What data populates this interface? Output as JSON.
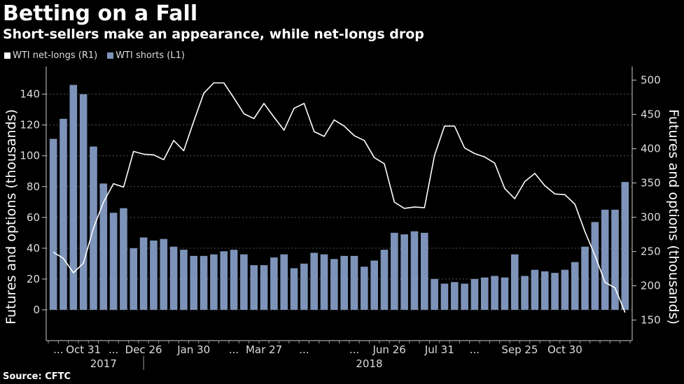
{
  "title": "Betting on a Fall",
  "subtitle": "Short-sellers make an appearance, while net-longs drop",
  "source": "Source: CFTC",
  "legend": {
    "net_longs": "WTI net-longs (R1)",
    "shorts": "WTI shorts (L1)"
  },
  "colors": {
    "bar": "#7d93b9",
    "line": "#ffffff",
    "grid": "#555555"
  },
  "chart_data": {
    "type": "bar+line",
    "y_left": {
      "label": "Futures and options (thousands)",
      "ticks": [
        0,
        20,
        40,
        60,
        80,
        100,
        120,
        140
      ],
      "range": [
        -20,
        158
      ]
    },
    "y_right": {
      "label": "Futures and options (thousands)",
      "ticks": [
        150,
        200,
        250,
        300,
        350,
        400,
        450,
        500
      ],
      "range": [
        120,
        520
      ]
    },
    "x_tick_labels": [
      "...",
      "Oct 31",
      "...",
      "Dec 26",
      "Jan 30",
      "...",
      "Mar 27",
      "...",
      "...",
      "Jun 26",
      "Jul 31",
      "...",
      "Sep 25",
      "Oct 30"
    ],
    "x_tick_positions": [
      1,
      3.5,
      6.5,
      9.5,
      14.5,
      18.5,
      21.5,
      25.5,
      30.5,
      34,
      39,
      42.5,
      47,
      51.5
    ],
    "year_labels": [
      "2017",
      "2018"
    ],
    "year_label_positions": [
      5.5,
      32
    ],
    "year_divider_after": 9.5,
    "series": [
      {
        "name": "WTI shorts (L1)",
        "kind": "bar",
        "axis": "left",
        "values": [
          111,
          124,
          146,
          140,
          106,
          82,
          63,
          66,
          40,
          47,
          45,
          46,
          41,
          39,
          35,
          35,
          36,
          38,
          39,
          36,
          29,
          29,
          34,
          36,
          27,
          30,
          37,
          36,
          33,
          35,
          35,
          28,
          32,
          39,
          50,
          49,
          51,
          50,
          20,
          17,
          18,
          17,
          20,
          21,
          22,
          21,
          36,
          22,
          26,
          25,
          24,
          26,
          31,
          41,
          57,
          65,
          65,
          83
        ]
      },
      {
        "name": "WTI net-longs (R1)",
        "kind": "line",
        "axis": "right",
        "values": [
          249,
          240,
          219,
          233,
          284,
          322,
          349,
          344,
          396,
          392,
          391,
          384,
          412,
          397,
          440,
          481,
          496,
          496,
          474,
          451,
          444,
          466,
          446,
          427,
          459,
          466,
          425,
          418,
          442,
          433,
          419,
          412,
          387,
          378,
          322,
          313,
          315,
          314,
          390,
          433,
          433,
          401,
          393,
          388,
          379,
          342,
          327,
          352,
          364,
          346,
          334,
          333,
          319,
          279,
          244,
          205,
          197,
          161
        ]
      }
    ]
  }
}
